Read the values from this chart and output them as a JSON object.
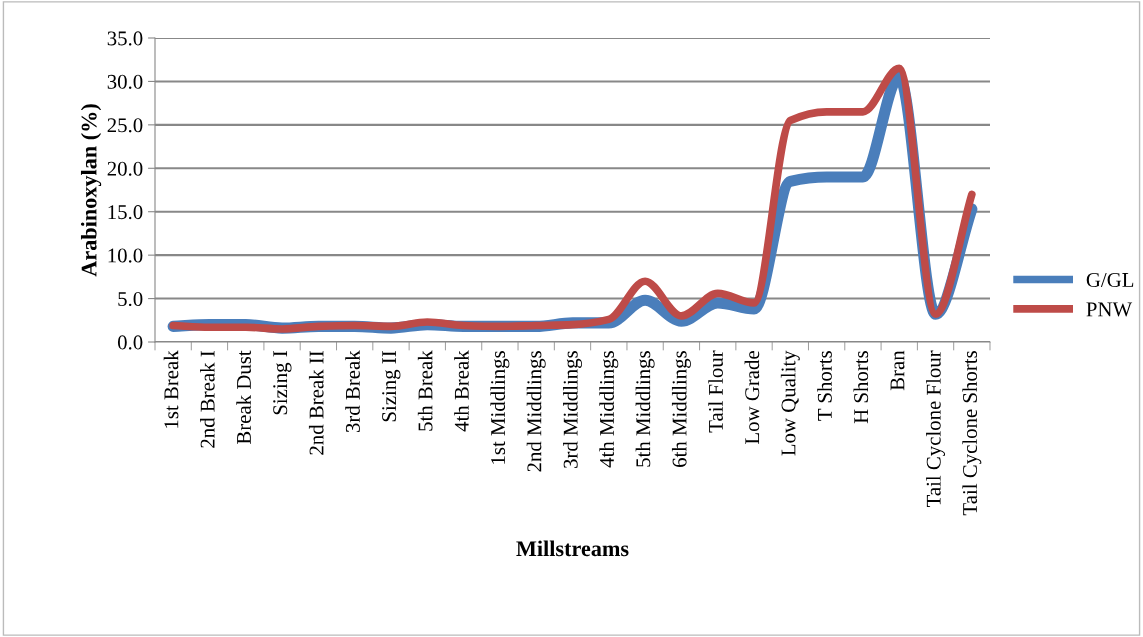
{
  "chart_data": {
    "type": "line",
    "xlabel": "Millstreams",
    "ylabel": "Arabinoxylan (%)",
    "categories": [
      "1st Break",
      "2nd Break I",
      "Break Dust",
      "Sizing I",
      "2nd Break II",
      "3rd Break",
      "Sizing II",
      "5th Break",
      "4th Break",
      "1st Middlings",
      "2nd Middlings",
      "3rd Middlings",
      "4th Middlings",
      "5th Middlings",
      "6th Middlings",
      "Tail Flour",
      "Low Grade",
      "Low Quality",
      "T Shorts",
      "H Shorts",
      "Bran",
      "Tail Cyclone Flour",
      "Tail Cyclone Shorts"
    ],
    "series": [
      {
        "name": "G/GL",
        "color": "#4a7ebb",
        "values": [
          1.8,
          2.0,
          2.0,
          1.6,
          1.8,
          1.8,
          1.6,
          2.0,
          1.8,
          1.8,
          1.8,
          2.2,
          2.2,
          4.8,
          2.4,
          4.5,
          3.8,
          18.5,
          19.0,
          19.0,
          30.5,
          3.2,
          15.3
        ]
      },
      {
        "name": "PNW",
        "color": "#be4b48",
        "values": [
          1.9,
          1.7,
          1.7,
          1.5,
          1.8,
          1.9,
          1.8,
          2.3,
          1.9,
          1.8,
          1.9,
          2.0,
          2.6,
          7.0,
          3.0,
          5.6,
          4.5,
          25.5,
          26.5,
          26.5,
          31.5,
          3.2,
          17.0
        ]
      }
    ],
    "ylim": [
      0,
      35
    ],
    "yticks": [
      {
        "value": 0,
        "label": "0.0"
      },
      {
        "value": 5,
        "label": "5.0"
      },
      {
        "value": 10,
        "label": "10.0"
      },
      {
        "value": 15,
        "label": "15.0"
      },
      {
        "value": 20,
        "label": "20.0"
      },
      {
        "value": 25,
        "label": "25.0"
      },
      {
        "value": 30,
        "label": "30.0"
      },
      {
        "value": 35,
        "label": "35.0"
      }
    ],
    "grid": "y",
    "legend": "right",
    "marker": "none",
    "line_style": "solid"
  }
}
